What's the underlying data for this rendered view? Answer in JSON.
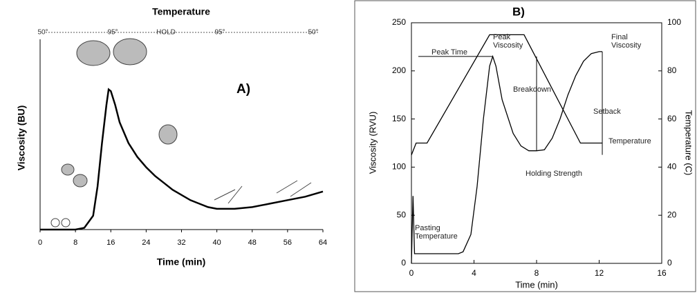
{
  "chart_data": [
    {
      "type": "line",
      "title": "Temperature",
      "label": "A)",
      "temperature_labels": [
        "50°",
        "95°",
        "HOLD",
        "95°",
        "50°"
      ],
      "x_label": "Time (min)",
      "y_label": "Viscosity (BU)",
      "xlim": [
        0,
        64
      ],
      "xticks": [
        0,
        8,
        16,
        24,
        32,
        40,
        48,
        56,
        64
      ],
      "ylim": [
        0,
        100
      ],
      "x": [
        0,
        8,
        10,
        12,
        13,
        14,
        15,
        15.5,
        16,
        17,
        18,
        20,
        22,
        24,
        26,
        28,
        30,
        32,
        34,
        36,
        38,
        40,
        44,
        48,
        52,
        56,
        60,
        64
      ],
      "series": [
        {
          "color": "#000000",
          "values": [
            0,
            0,
            1,
            8,
            25,
            50,
            72,
            81,
            80,
            72,
            62,
            50,
            42,
            36,
            31,
            27,
            23,
            20,
            17,
            15,
            13,
            12,
            12,
            13,
            15,
            17,
            19,
            22
          ]
        }
      ]
    },
    {
      "type": "line",
      "title": "B)",
      "x_label": "Time (min)",
      "y_label": "Viscosity (RVU)",
      "y2_label": "Temperature (C)",
      "xlim": [
        0,
        16
      ],
      "xticks": [
        0,
        4,
        8,
        12,
        16
      ],
      "ylim": [
        0,
        250
      ],
      "yticks": [
        0,
        50,
        100,
        150,
        200,
        250
      ],
      "y2lim": [
        0,
        100
      ],
      "y2ticks": [
        0,
        20,
        40,
        60,
        80,
        100
      ],
      "series": [
        {
          "color": "#000000",
          "x": [
            0,
            0.1,
            0.2,
            3,
            3.3,
            3.8,
            4.2,
            4.6,
            5,
            5.2,
            5.4,
            5.8,
            6.5,
            7,
            7.5,
            8,
            8.5,
            9,
            9.5,
            10,
            10.5,
            11,
            11.5,
            12,
            12.2
          ],
          "values": [
            0,
            70,
            10,
            10,
            12,
            30,
            80,
            150,
            205,
            215,
            205,
            170,
            135,
            122,
            117,
            117,
            118,
            130,
            150,
            175,
            195,
            210,
            218,
            220,
            220
          ]
        },
        {
          "color": "#000000",
          "axis": "y2",
          "x": [
            0,
            0.3,
            1,
            5,
            5.2,
            7.2,
            10.8,
            12.2
          ],
          "values": [
            45,
            50,
            50,
            95,
            95,
            95,
            50,
            50
          ]
        }
      ],
      "annotations": [
        "Peak Time",
        "Peak Viscosity",
        "Final Viscosity",
        "Breakdown",
        "Setback",
        "Temperature",
        "Holding Strength",
        "Pasting Temperature"
      ]
    }
  ]
}
